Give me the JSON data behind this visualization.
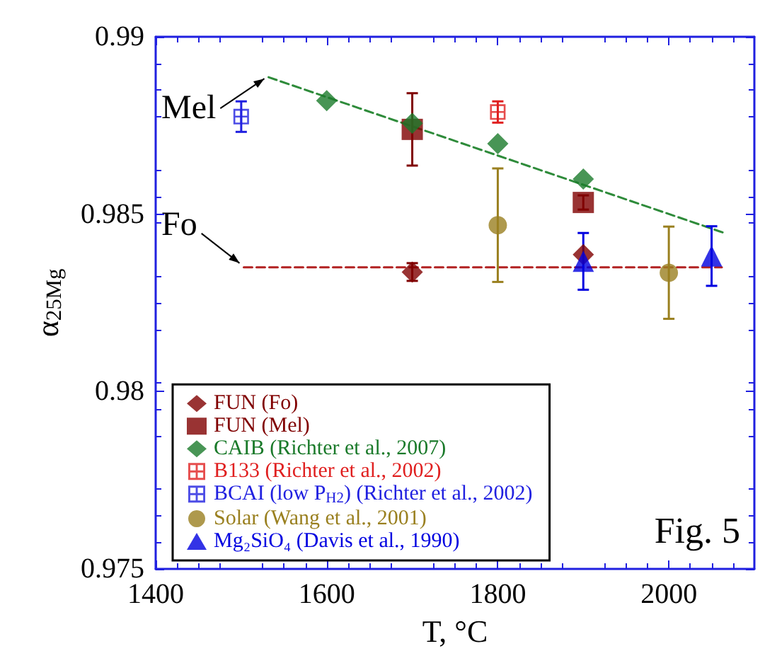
{
  "chart_data": {
    "type": "scatter",
    "xlabel": "T, °C",
    "ylabel": "α$_{25Mg}$",
    "xlim": [
      1400,
      2100
    ],
    "xticks": [
      1400,
      1600,
      1800,
      2000
    ],
    "ylim": [
      0.975,
      0.99
    ],
    "yticks": [
      0.975,
      0.98,
      0.985,
      0.99
    ],
    "grid": false,
    "legend": "bottom left",
    "series": [
      {
        "name": "FUN (Fo)",
        "color": "#800000",
        "marker": "diamond",
        "x": [
          1700,
          1900
        ],
        "values": [
          0.98337,
          0.98386
        ],
        "errors": [
          0.00025,
          null
        ]
      },
      {
        "name": "FUN (Mel)",
        "color": "#800000",
        "marker": "square",
        "x": [
          1700,
          1900
        ],
        "values": [
          0.98739,
          0.98533
        ],
        "errors": [
          0.00102,
          0.0002
        ]
      },
      {
        "name": "CAIB (Richter et al., 2007)",
        "color": "#1a7a2a",
        "marker": "diamond",
        "x": [
          1600,
          1700,
          1800,
          1900
        ],
        "values": [
          0.9882,
          0.98756,
          0.98699,
          0.98599
        ]
      },
      {
        "name": "B133 (Richter et al., 2002)",
        "color": "#e02020",
        "marker": "cross",
        "x": [
          1800
        ],
        "values": [
          0.98788
        ],
        "errors": [
          0.0003
        ]
      },
      {
        "name": "BCAI (low P$_{H2}$) (Richter et al., 2002)",
        "color": "#2020e0",
        "marker": "cross",
        "x": [
          1500
        ],
        "values": [
          0.98775
        ],
        "errors": [
          0.00043
        ]
      },
      {
        "name": "Solar (Wang et al., 2001)",
        "color": "#9a8020",
        "marker": "circle",
        "x": [
          1800,
          2000
        ],
        "values": [
          0.98469,
          0.98335
        ],
        "errors": [
          0.0016,
          0.0013
        ]
      },
      {
        "name": "Mg₂SiO₄ (Davis et al., 1990)",
        "color": "#0000e0",
        "marker": "triangle",
        "x": [
          1900,
          2050
        ],
        "values": [
          0.98367,
          0.98382
        ],
        "errors": [
          0.0008,
          0.00084
        ]
      },
      {
        "type": "line",
        "color": "#2e8b3a",
        "marker": "none",
        "line_style": "dashed",
        "x": [
          1532,
          2065
        ],
        "values": [
          0.98886,
          0.98447
        ]
      },
      {
        "type": "line",
        "color": "#b22222",
        "marker": "none",
        "line_style": "dashed",
        "x": [
          1503,
          2062
        ],
        "values": [
          0.9835,
          0.9835
        ]
      }
    ],
    "annotations": [
      {
        "text": "Mel",
        "x": 1532,
        "y": 0.98886
      },
      {
        "text": "Fo",
        "x": 1503,
        "y": 0.9835
      },
      "Fig. 5"
    ]
  }
}
